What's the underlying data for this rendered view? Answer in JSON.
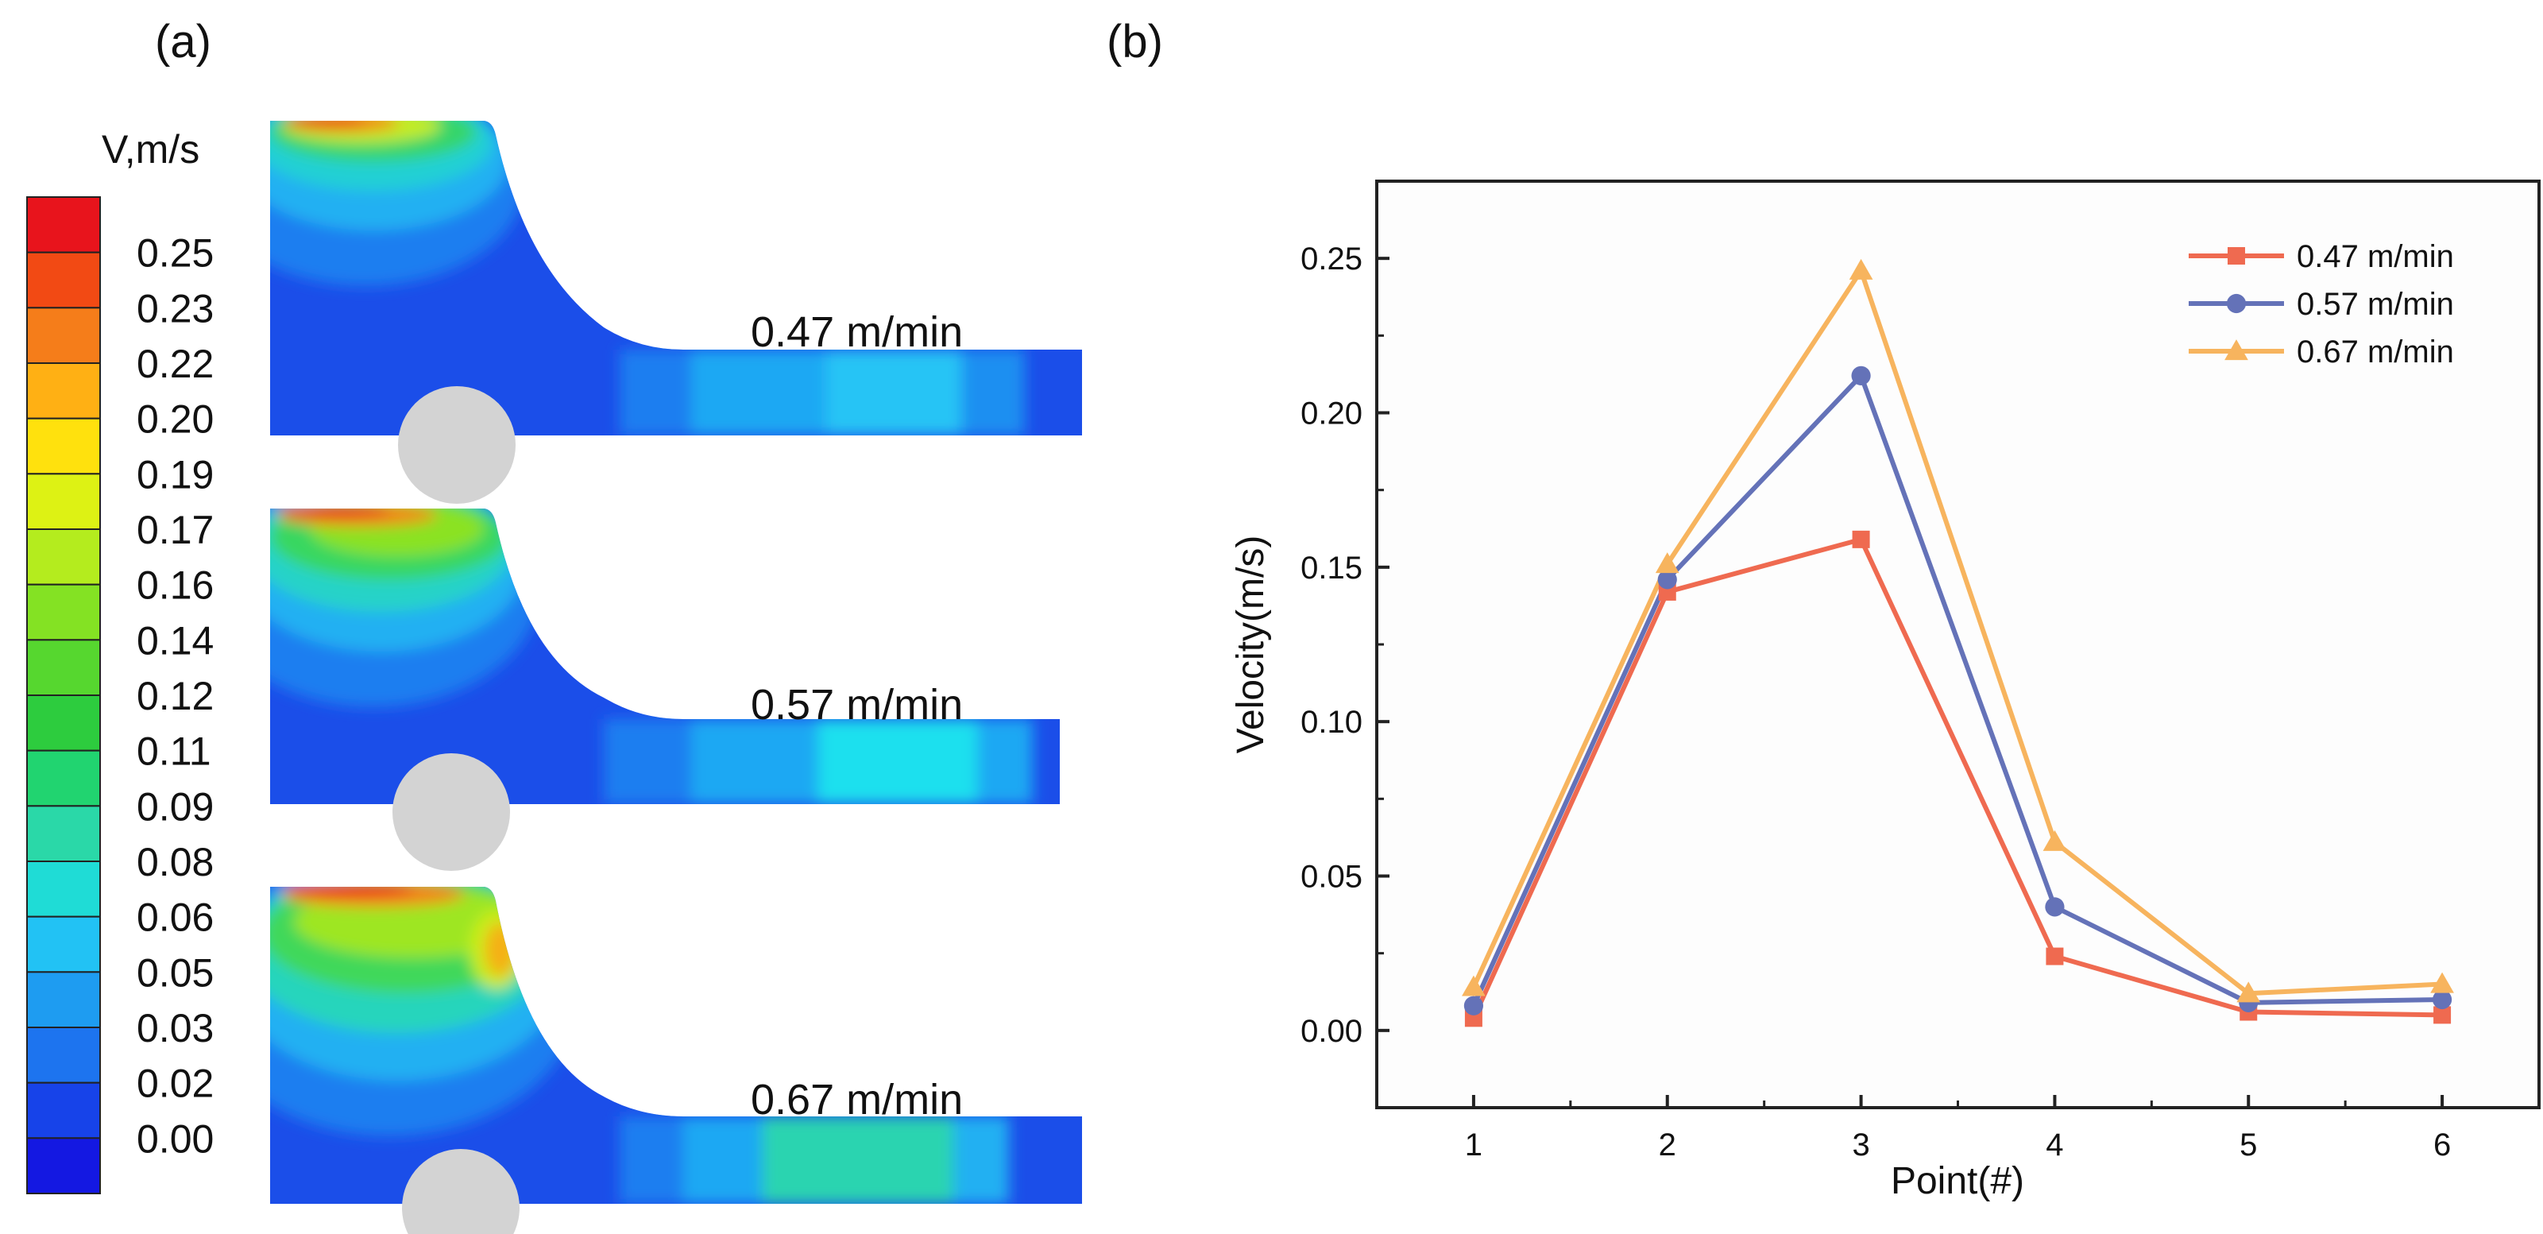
{
  "panel_a": {
    "label": "(a)",
    "legend_title": "V,m/s",
    "legend_levels": [
      "0.25",
      "0.23",
      "0.22",
      "0.20",
      "0.19",
      "0.17",
      "0.16",
      "0.14",
      "0.12",
      "0.11",
      "0.09",
      "0.08",
      "0.06",
      "0.05",
      "0.03",
      "0.02",
      "0.00"
    ],
    "legend_colors": [
      "#e8141c",
      "#f24a14",
      "#f57d1a",
      "#ffb014",
      "#ffe10d",
      "#ddf214",
      "#b4ec1e",
      "#84e223",
      "#56d72f",
      "#2dcc3e",
      "#21d470",
      "#2ad8a8",
      "#1fdcd6",
      "#22c2f4",
      "#1e9cf1",
      "#1d74ef",
      "#1743e9",
      "#1418e2"
    ],
    "contours": [
      {
        "speed_label": "0.47 m/min"
      },
      {
        "speed_label": "0.57 m/min"
      },
      {
        "speed_label": "0.67 m/min"
      }
    ]
  },
  "panel_b": {
    "label": "(b)"
  },
  "chart_data": {
    "type": "line",
    "title": "",
    "xlabel": "Point(#)",
    "ylabel": "Velocity(m/s)",
    "categories": [
      "1",
      "2",
      "3",
      "4",
      "5",
      "6"
    ],
    "x": [
      1,
      2,
      3,
      4,
      5,
      6
    ],
    "xlim": [
      0.5,
      6.5
    ],
    "ylim": [
      -0.025,
      0.275
    ],
    "yticks": [
      "0.00",
      "0.05",
      "0.10",
      "0.15",
      "0.20",
      "0.25"
    ],
    "ytick_values": [
      0,
      0.05,
      0.1,
      0.15,
      0.2,
      0.25
    ],
    "grid": false,
    "legend_position": "top-right",
    "series": [
      {
        "name": "0.47 m/min",
        "color": "#ef6a50",
        "marker": "square",
        "values": [
          0.004,
          0.142,
          0.159,
          0.024,
          0.006,
          0.005
        ]
      },
      {
        "name": "0.57 m/min",
        "color": "#6472b8",
        "marker": "circle",
        "values": [
          0.008,
          0.146,
          0.212,
          0.04,
          0.009,
          0.01
        ]
      },
      {
        "name": "0.67 m/min",
        "color": "#f7b45e",
        "marker": "triangle",
        "values": [
          0.014,
          0.151,
          0.246,
          0.061,
          0.012,
          0.015
        ]
      }
    ]
  }
}
